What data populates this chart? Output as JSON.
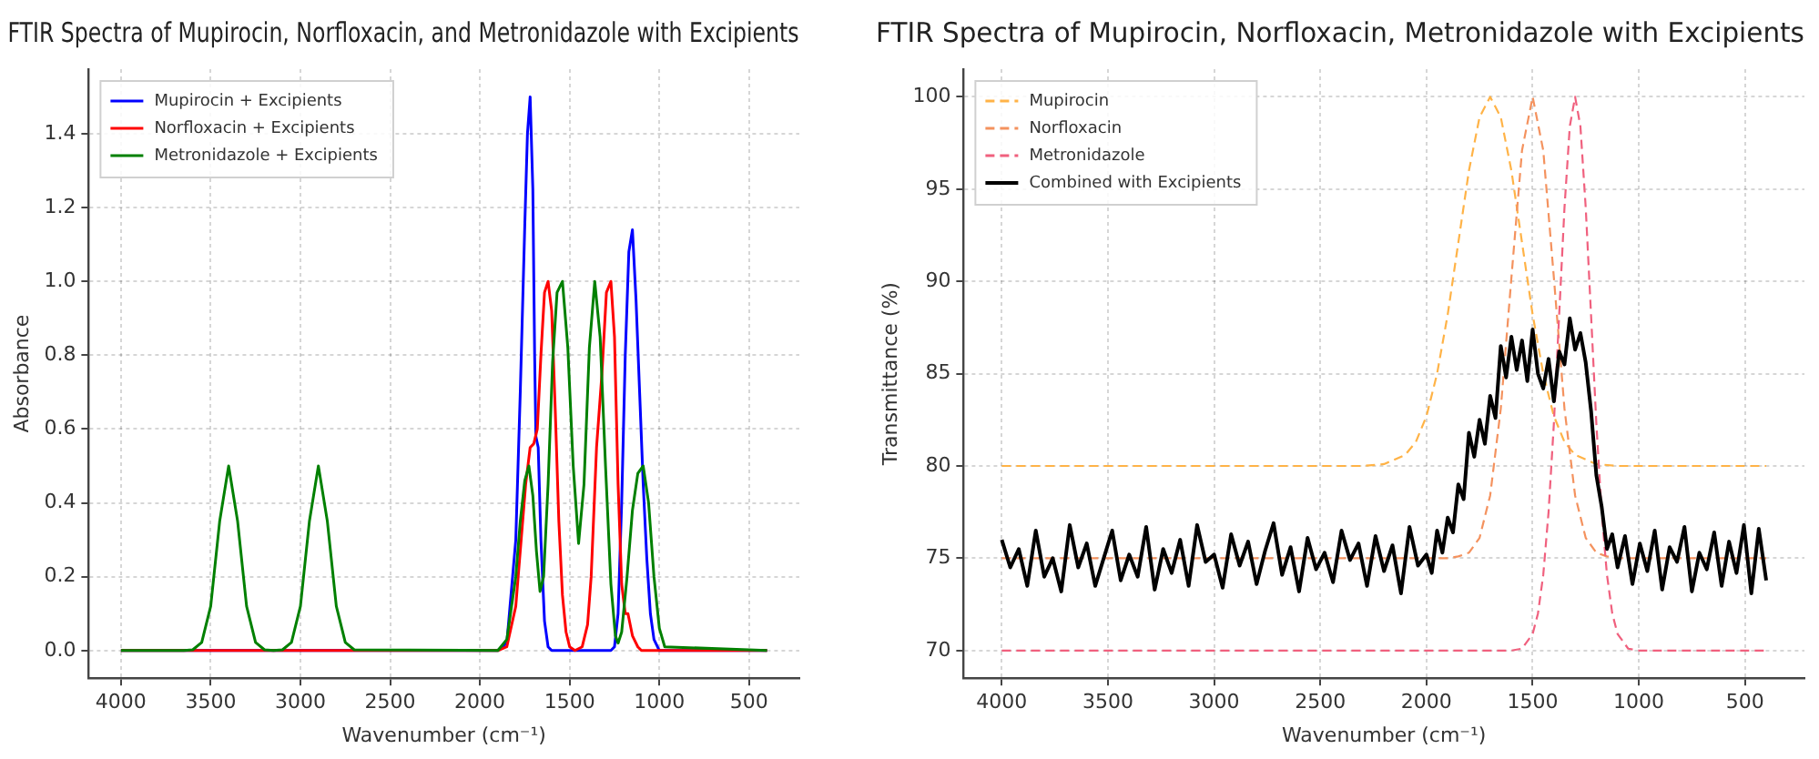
{
  "chart_data": [
    {
      "type": "line",
      "title": "FTIR Spectra of Mupirocin, Norfloxacin, and Metronidazole with Excipients",
      "xlabel": "Wavenumber (cm⁻¹)",
      "ylabel": "Absorbance",
      "xlim": [
        4180,
        220
      ],
      "xticks": [
        4000,
        3500,
        3000,
        2500,
        2000,
        1500,
        1000,
        500
      ],
      "ylim": [
        -0.075,
        1.575
      ],
      "yticks": [
        {
          "value": 0,
          "label": "0.0"
        },
        0.2,
        0.4,
        0.6,
        0.8,
        {
          "value": 1,
          "label": "1.0"
        },
        1.2,
        1.4
      ],
      "grid": true,
      "legend": "top left",
      "marker": "none",
      "series": [
        {
          "name": "Mupirocin + Excipients",
          "color": "#0000ff",
          "x": [
            4000,
            1900,
            1850,
            1800,
            1775,
            1750,
            1735,
            1720,
            1705,
            1695,
            1688,
            1675,
            1660,
            1640,
            1620,
            1600,
            1270,
            1250,
            1230,
            1210,
            1190,
            1170,
            1150,
            1130,
            1110,
            1090,
            1070,
            1050,
            1030,
            1000,
            400
          ],
          "values": [
            0,
            0,
            0.02,
            0.3,
            0.7,
            1.15,
            1.4,
            1.5,
            1.25,
            0.8,
            0.58,
            0.55,
            0.3,
            0.08,
            0.01,
            0,
            0,
            0.01,
            0.1,
            0.4,
            0.8,
            1.08,
            1.14,
            0.95,
            0.7,
            0.45,
            0.25,
            0.1,
            0.03,
            0,
            0
          ]
        },
        {
          "name": "Norfloxacin + Excipients",
          "color": "#ff0000",
          "x": [
            4000,
            1900,
            1850,
            1800,
            1770,
            1745,
            1720,
            1700,
            1680,
            1660,
            1640,
            1620,
            1600,
            1580,
            1560,
            1540,
            1520,
            1500,
            1470,
            1430,
            1400,
            1380,
            1350,
            1320,
            1295,
            1270,
            1250,
            1230,
            1210,
            1190,
            1175,
            1150,
            1120,
            1100,
            400
          ],
          "values": [
            0,
            0,
            0.01,
            0.12,
            0.3,
            0.45,
            0.55,
            0.56,
            0.6,
            0.8,
            0.97,
            1.0,
            0.92,
            0.65,
            0.35,
            0.15,
            0.05,
            0.01,
            0,
            0.01,
            0.07,
            0.2,
            0.55,
            0.75,
            0.97,
            1.0,
            0.85,
            0.45,
            0.18,
            0.1,
            0.1,
            0.04,
            0.01,
            0,
            0
          ]
        },
        {
          "name": "Metronidazole + Excipients",
          "color": "#008000",
          "x": [
            4000,
            3650,
            3600,
            3550,
            3500,
            3450,
            3400,
            3350,
            3300,
            3250,
            3200,
            3150,
            3100,
            3050,
            3000,
            2950,
            2900,
            2850,
            2800,
            2750,
            2700,
            1900,
            1850,
            1800,
            1775,
            1750,
            1727,
            1705,
            1685,
            1665,
            1645,
            1620,
            1595,
            1570,
            1540,
            1510,
            1480,
            1450,
            1420,
            1390,
            1360,
            1330,
            1300,
            1270,
            1245,
            1230,
            1210,
            1180,
            1150,
            1120,
            1090,
            1060,
            1030,
            1000,
            970,
            400
          ],
          "values": [
            0,
            0,
            0.002,
            0.022,
            0.12,
            0.35,
            0.5,
            0.35,
            0.12,
            0.022,
            0.002,
            0,
            0.002,
            0.022,
            0.12,
            0.35,
            0.5,
            0.35,
            0.12,
            0.022,
            0.002,
            0,
            0.03,
            0.2,
            0.35,
            0.46,
            0.5,
            0.42,
            0.27,
            0.16,
            0.2,
            0.45,
            0.78,
            0.97,
            1.0,
            0.82,
            0.5,
            0.29,
            0.45,
            0.82,
            1.0,
            0.85,
            0.5,
            0.18,
            0.04,
            0.02,
            0.05,
            0.2,
            0.38,
            0.48,
            0.5,
            0.4,
            0.2,
            0.06,
            0.01,
            0
          ]
        }
      ]
    },
    {
      "type": "line",
      "title": "FTIR Spectra of Mupirocin, Norfloxacin, Metronidazole with Excipients",
      "xlabel": "Wavenumber (cm⁻¹)",
      "ylabel": "Transmittance (%)",
      "xlim": [
        4180,
        220
      ],
      "xticks": [
        4000,
        3500,
        3000,
        2500,
        2000,
        1500,
        1000,
        500
      ],
      "ylim": [
        68.5,
        101.5
      ],
      "yticks": [
        70,
        75,
        80,
        85,
        90,
        95,
        100
      ],
      "grid": true,
      "legend": "top left",
      "marker": "none",
      "series": [
        {
          "name": "Mupirocin",
          "color": "#ffb347",
          "line_style": "dashed",
          "x": [
            4000,
            2300,
            2200,
            2100,
            2050,
            2000,
            1950,
            1900,
            1850,
            1800,
            1750,
            1700,
            1650,
            1600,
            1550,
            1500,
            1450,
            1400,
            1350,
            1300,
            1200,
            1100,
            400
          ],
          "values": [
            80,
            80,
            80.1,
            80.6,
            81.3,
            82.7,
            85,
            88.2,
            92.1,
            96,
            98.9,
            100,
            98.9,
            96,
            92.1,
            88.2,
            85,
            82.7,
            81.3,
            80.6,
            80.1,
            80,
            80
          ]
        },
        {
          "name": "Norfloxacin",
          "color": "#f4925e",
          "line_style": "dashed",
          "x": [
            4000,
            1900,
            1850,
            1800,
            1750,
            1700,
            1650,
            1600,
            1550,
            1500,
            1450,
            1400,
            1350,
            1300,
            1250,
            1200,
            1150,
            1100,
            400
          ],
          "values": [
            75,
            75,
            75.1,
            75.3,
            76.1,
            78.4,
            83.1,
            90.2,
            97.1,
            100,
            97.1,
            90.2,
            83.1,
            78.4,
            76.1,
            75.3,
            75.1,
            75,
            75
          ]
        },
        {
          "name": "Metronidazole",
          "color": "#f0607e",
          "line_style": "dashed",
          "x": [
            4000,
            1600,
            1550,
            1500,
            1475,
            1450,
            1425,
            1400,
            1375,
            1350,
            1325,
            1300,
            1275,
            1250,
            1225,
            1200,
            1175,
            1150,
            1125,
            1100,
            1050,
            1000,
            400
          ],
          "values": [
            70,
            70,
            70.1,
            70.9,
            72,
            74.1,
            77.5,
            82.3,
            88.2,
            94,
            98.4,
            100,
            98.4,
            94,
            88.2,
            82.3,
            77.5,
            74.1,
            72,
            70.9,
            70.1,
            70,
            70
          ]
        },
        {
          "name": "Combined with Excipients",
          "color": "#000000",
          "line_style": "solid",
          "x": [
            4000,
            3960,
            3920,
            3880,
            3840,
            3800,
            3760,
            3720,
            3680,
            3640,
            3600,
            3560,
            3520,
            3480,
            3440,
            3400,
            3360,
            3320,
            3280,
            3240,
            3200,
            3160,
            3120,
            3080,
            3040,
            3000,
            2960,
            2920,
            2880,
            2840,
            2800,
            2760,
            2720,
            2680,
            2640,
            2600,
            2560,
            2520,
            2480,
            2440,
            2400,
            2360,
            2320,
            2280,
            2240,
            2200,
            2160,
            2120,
            2080,
            2040,
            2000,
            1975,
            1950,
            1925,
            1900,
            1875,
            1850,
            1825,
            1800,
            1775,
            1750,
            1725,
            1700,
            1675,
            1650,
            1625,
            1600,
            1575,
            1550,
            1525,
            1500,
            1475,
            1450,
            1425,
            1400,
            1375,
            1350,
            1325,
            1300,
            1275,
            1250,
            1225,
            1200,
            1175,
            1150,
            1125,
            1100,
            1065,
            1030,
            995,
            960,
            925,
            890,
            855,
            820,
            785,
            750,
            715,
            680,
            645,
            610,
            575,
            540,
            505,
            470,
            435,
            400
          ],
          "values": [
            76,
            74.5,
            75.5,
            73.5,
            76.5,
            74,
            75,
            73.2,
            76.8,
            74.5,
            75.8,
            73.5,
            75,
            76.5,
            73.8,
            75.2,
            74,
            76.7,
            73.3,
            75.5,
            74.2,
            76,
            73.5,
            76.8,
            74.8,
            75.2,
            73.4,
            76.3,
            74.6,
            75.9,
            73.6,
            75.4,
            76.9,
            74.1,
            75.6,
            73.2,
            76.1,
            74.4,
            75.3,
            73.7,
            76.5,
            74.9,
            75.8,
            73.5,
            76.2,
            74.3,
            75.7,
            73.1,
            76.7,
            74.6,
            75.2,
            74.2,
            76.5,
            75.3,
            77.2,
            76.4,
            79,
            78.2,
            81.8,
            80.5,
            82.5,
            81.2,
            83.8,
            82.6,
            86.5,
            84.8,
            87,
            85.2,
            86.8,
            84.6,
            87.4,
            85,
            84.2,
            85.8,
            83.5,
            86.2,
            85.5,
            88,
            86.3,
            87.2,
            85.6,
            83,
            79.5,
            77.8,
            75.5,
            76.3,
            74.5,
            76.2,
            73.6,
            75.8,
            74.3,
            76.5,
            73.3,
            75.6,
            74.8,
            76.7,
            73.2,
            75.3,
            74.4,
            76.4,
            73.5,
            75.9,
            74.2,
            76.8,
            73.1,
            76.6,
            73.8
          ]
        }
      ]
    }
  ]
}
